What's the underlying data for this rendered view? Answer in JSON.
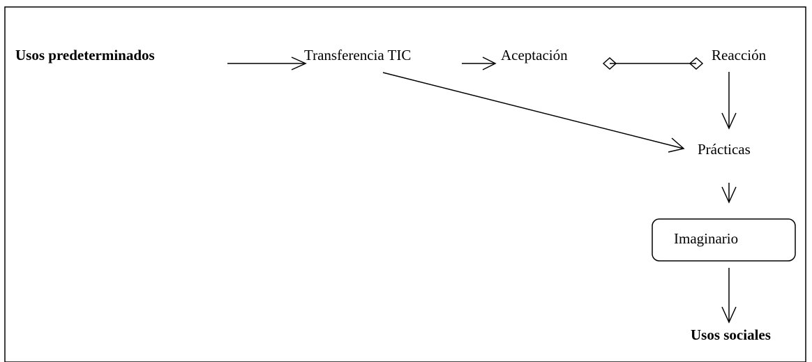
{
  "nodes": [
    {
      "label": "Usos predeterminados"
    },
    {
      "label": "Transferencia TIC"
    },
    {
      "label": "Aceptación"
    },
    {
      "label": "Reacción"
    },
    {
      "label": "Prácticas"
    },
    {
      "label": "Imaginario"
    },
    {
      "label": "Usos sociales"
    }
  ]
}
